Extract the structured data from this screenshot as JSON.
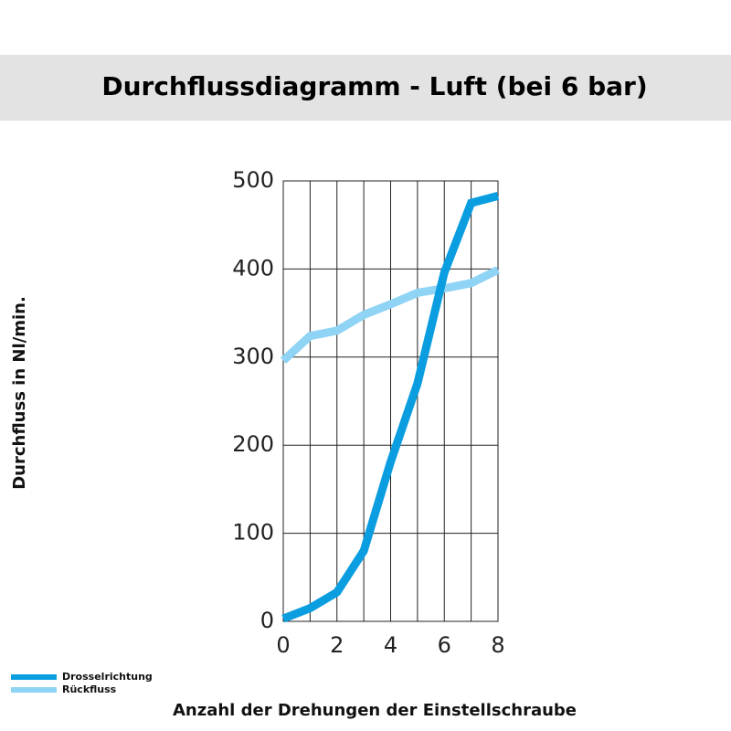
{
  "chart_data": {
    "type": "line",
    "title": "Durchflussdiagramm - Luft (bei 6 bar)",
    "x_label": "Anzahl der Drehungen der Einstellschraube",
    "y_label": "Durchfluss in Nl/min.",
    "x": [
      0,
      1,
      2,
      3,
      4,
      5,
      6,
      7,
      8
    ],
    "series": [
      {
        "name": "Drosselrichtung",
        "color": "#0a9de0",
        "values": [
          3,
          15,
          33,
          80,
          181,
          270,
          396,
          475,
          483
        ]
      },
      {
        "name": "Rückfluss",
        "color": "#8fd3f5",
        "values": [
          296,
          324,
          330,
          348,
          360,
          373,
          378,
          384,
          399
        ]
      }
    ],
    "xlim": [
      0,
      8
    ],
    "xticks": [
      0,
      2,
      4,
      6,
      8
    ],
    "x_minor_ticks": [
      1,
      3,
      5,
      7
    ],
    "ylim": [
      0,
      500
    ],
    "yticks": [
      0,
      100,
      200,
      300,
      400,
      500
    ],
    "grid": true,
    "legend": "bottom-left"
  }
}
